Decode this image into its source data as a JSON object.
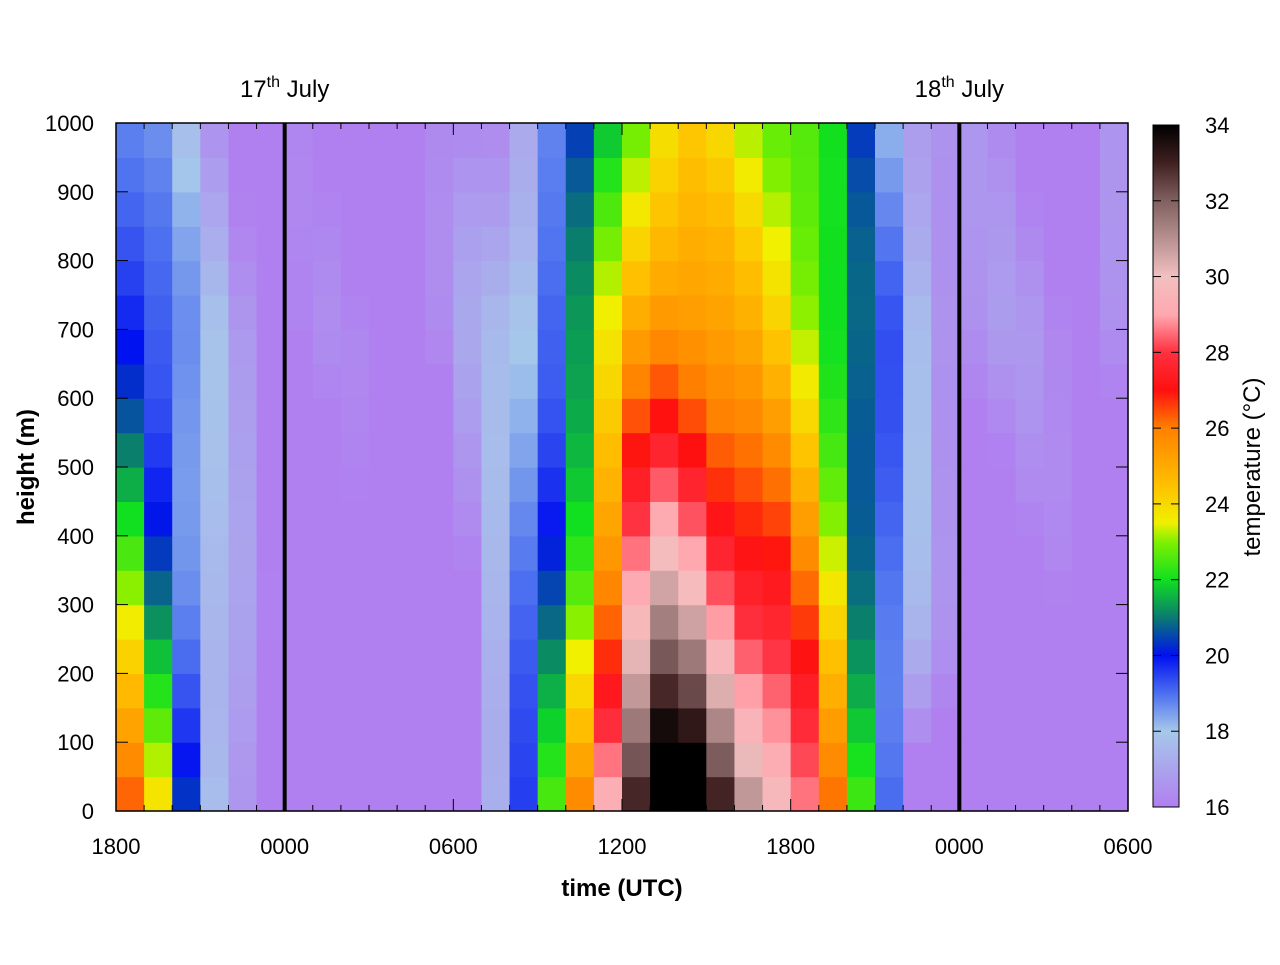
{
  "chart_data": {
    "type": "heatmap",
    "title": "",
    "xlabel": "time (UTC)",
    "ylabel": "height (m)",
    "colorbar_label": "temperature (°C)",
    "x_ticks": [
      "1800",
      "0000",
      "0600",
      "1200",
      "1800",
      "0000",
      "0600"
    ],
    "x_range_hours": [
      0,
      36
    ],
    "y_ticks": [
      0,
      100,
      200,
      300,
      400,
      500,
      600,
      700,
      800,
      900,
      1000
    ],
    "ylim": [
      0,
      1000
    ],
    "colorbar_ticks": [
      16,
      18,
      20,
      22,
      24,
      26,
      28,
      30,
      32,
      34
    ],
    "colorbar_range": [
      16,
      34
    ],
    "colormap": [
      {
        "v": 16,
        "c": "#b07ff0"
      },
      {
        "v": 18,
        "c": "#a6c8ea"
      },
      {
        "v": 19,
        "c": "#4c6ff0"
      },
      {
        "v": 20,
        "c": "#0010f0"
      },
      {
        "v": 21,
        "c": "#0a7a70"
      },
      {
        "v": 22,
        "c": "#10e020"
      },
      {
        "v": 23,
        "c": "#80f000"
      },
      {
        "v": 23.5,
        "c": "#f0f000"
      },
      {
        "v": 24.5,
        "c": "#ffc000"
      },
      {
        "v": 26,
        "c": "#ff8000"
      },
      {
        "v": 27,
        "c": "#ff1010"
      },
      {
        "v": 28,
        "c": "#ff3040"
      },
      {
        "v": 29,
        "c": "#ffa8b0"
      },
      {
        "v": 30,
        "c": "#f2c0c0"
      },
      {
        "v": 31,
        "c": "#b89090"
      },
      {
        "v": 32,
        "c": "#806060"
      },
      {
        "v": 33,
        "c": "#402020"
      },
      {
        "v": 34,
        "c": "#000000"
      }
    ],
    "date_markers": [
      {
        "hour": 6,
        "label_main": "17",
        "label_sup": "th",
        "label_rest": " July"
      },
      {
        "hour": 30,
        "label_main": "18",
        "label_sup": "th",
        "label_rest": " July"
      }
    ],
    "time_steps": 36,
    "height_levels": 20,
    "grid": false,
    "legend": "colorbar-right"
  }
}
